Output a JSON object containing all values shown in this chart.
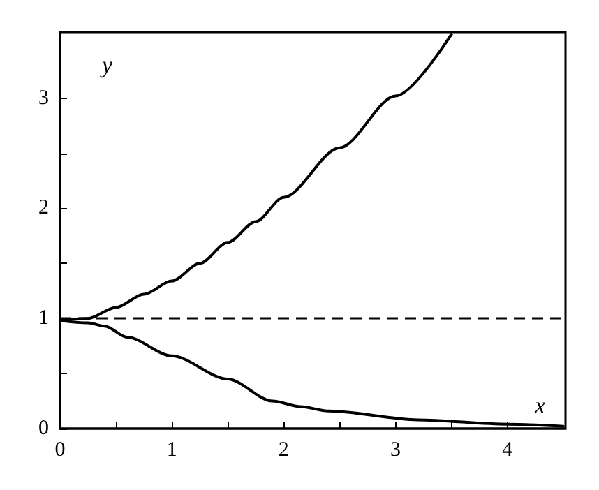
{
  "chart_data": {
    "type": "line",
    "xlabel": "x",
    "ylabel": "y",
    "xlim": [
      0,
      4.52
    ],
    "ylim": [
      0,
      3.6
    ],
    "xticks": [
      0,
      {
        "value": 0.5,
        "label": null
      },
      1,
      {
        "value": 1.5,
        "label": null
      },
      2,
      {
        "value": 2.5,
        "label": null
      },
      3,
      {
        "value": 3.5,
        "label": null
      },
      4
    ],
    "yticks": [
      0,
      {
        "value": 0.5,
        "label": null
      },
      1,
      {
        "value": 1.5,
        "label": null
      },
      2,
      {
        "value": 2.5,
        "label": null
      },
      3
    ],
    "grid": false,
    "marker": "none",
    "line_style": "solid",
    "series": [
      {
        "color": "#000000",
        "x": [
          0,
          0.25,
          0.5,
          0.75,
          1,
          1.25,
          1.5,
          1.75,
          2,
          2.5,
          3,
          3.5
        ],
        "values": [
          0.98,
          1.0,
          1.1,
          1.22,
          1.34,
          1.5,
          1.69,
          1.88,
          2.1,
          2.55,
          3.02,
          3.58
        ]
      },
      {
        "color": "#000000",
        "x": [
          0,
          0.25,
          0.4,
          0.6,
          1,
          1.5,
          1.9,
          2.15,
          2.4,
          3.2,
          4,
          4.5
        ],
        "values": [
          0.98,
          0.96,
          0.93,
          0.83,
          0.66,
          0.45,
          0.25,
          0.2,
          0.16,
          0.08,
          0.04,
          0.02
        ]
      }
    ],
    "ref_lines": [
      {
        "axis": "y",
        "value": 1,
        "color": "#000000",
        "line_style": "dashed"
      }
    ]
  }
}
